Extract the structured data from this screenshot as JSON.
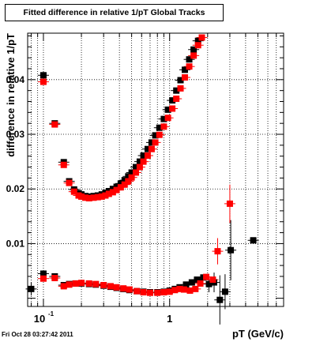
{
  "page": {
    "timestamp": "Fri Oct 28 03:27:42 2011"
  },
  "chart_data": {
    "type": "scatter",
    "title": "Fitted difference in relative 1/pT  Global Tracks",
    "xlabel": "pT (GeV/c)",
    "ylabel": "difference in relative 1/pT",
    "x_scale": "log",
    "xlim": [
      0.075,
      8.0
    ],
    "ylim": [
      -0.0015,
      0.0485
    ],
    "grid": true,
    "x_ticks": [
      {
        "value": 0.1,
        "label": "10",
        "exp": "-1"
      },
      {
        "value": 1,
        "label": "1",
        "exp": ""
      }
    ],
    "y_ticks": [
      {
        "value": 0.01,
        "label": "0.01"
      },
      {
        "value": 0.02,
        "label": "0.02"
      },
      {
        "value": 0.03,
        "label": "0.03"
      },
      {
        "value": 0.04,
        "label": "0.04"
      }
    ],
    "series": [
      {
        "color": "#000000",
        "points": [
          [
            0.08,
            0.0017,
            0.0012
          ],
          [
            0.1,
            0.0408,
            0.0006
          ],
          [
            0.123,
            0.032,
            0.0005
          ],
          [
            0.145,
            0.0249,
            0.0004
          ],
          [
            0.16,
            0.0214,
            0.0004
          ],
          [
            0.175,
            0.0199,
            0
          ],
          [
            0.19,
            0.0192,
            0
          ],
          [
            0.2,
            0.019,
            0
          ],
          [
            0.215,
            0.0187,
            0
          ],
          [
            0.23,
            0.0186,
            0
          ],
          [
            0.25,
            0.0187,
            0
          ],
          [
            0.27,
            0.0188,
            0
          ],
          [
            0.29,
            0.019,
            0
          ],
          [
            0.31,
            0.0193,
            0
          ],
          [
            0.33,
            0.0196,
            0
          ],
          [
            0.355,
            0.02,
            0
          ],
          [
            0.38,
            0.0204,
            0
          ],
          [
            0.41,
            0.021,
            0
          ],
          [
            0.44,
            0.0216,
            0
          ],
          [
            0.47,
            0.0223,
            0
          ],
          [
            0.5,
            0.023,
            0
          ],
          [
            0.54,
            0.024,
            0
          ],
          [
            0.58,
            0.025,
            0
          ],
          [
            0.62,
            0.0261,
            0
          ],
          [
            0.67,
            0.0273,
            0
          ],
          [
            0.72,
            0.0285,
            0
          ],
          [
            0.77,
            0.0298,
            0
          ],
          [
            0.83,
            0.0312,
            0
          ],
          [
            0.9,
            0.0328,
            0
          ],
          [
            0.97,
            0.0345,
            0
          ],
          [
            1.05,
            0.0362,
            0
          ],
          [
            1.13,
            0.038,
            0
          ],
          [
            1.22,
            0.0399,
            0
          ],
          [
            1.32,
            0.0418,
            0
          ],
          [
            1.43,
            0.0437,
            0
          ],
          [
            1.55,
            0.0455,
            0
          ],
          [
            1.68,
            0.0471,
            0
          ],
          [
            0.1,
            0.0045,
            0.0004
          ],
          [
            0.123,
            0.004,
            0.0004
          ],
          [
            0.145,
            0.0024,
            0
          ],
          [
            0.16,
            0.0026,
            0
          ],
          [
            0.18,
            0.0027,
            0
          ],
          [
            0.2,
            0.0027,
            0
          ],
          [
            0.23,
            0.0026,
            0
          ],
          [
            0.26,
            0.0025,
            0
          ],
          [
            0.3,
            0.0023,
            0
          ],
          [
            0.34,
            0.0021,
            0
          ],
          [
            0.38,
            0.0019,
            0
          ],
          [
            0.43,
            0.0017,
            0
          ],
          [
            0.48,
            0.0015,
            0
          ],
          [
            0.55,
            0.0013,
            0
          ],
          [
            0.62,
            0.0012,
            0
          ],
          [
            0.7,
            0.0011,
            0
          ],
          [
            0.8,
            0.0011,
            0
          ],
          [
            0.9,
            0.0012,
            0
          ],
          [
            1.0,
            0.0014,
            0
          ],
          [
            1.1,
            0.0017,
            0
          ],
          [
            1.2,
            0.002,
            0
          ],
          [
            1.35,
            0.0025,
            0
          ],
          [
            1.5,
            0.0029,
            0
          ],
          [
            1.65,
            0.0034,
            0
          ],
          [
            1.85,
            0.0038,
            0
          ],
          [
            2.05,
            0.0026,
            0.0015
          ],
          [
            2.25,
            0.0029,
            0.0018
          ],
          [
            2.5,
            -0.0003,
            0.0045
          ],
          [
            2.75,
            0.0012,
            0.0032
          ],
          [
            3.05,
            0.0088,
            0.0055
          ],
          [
            4.6,
            0.0106,
            0
          ]
        ]
      },
      {
        "color": "#ff0000",
        "points": [
          [
            0.1,
            0.0396,
            0.0005
          ],
          [
            0.123,
            0.0318,
            0.0004
          ],
          [
            0.145,
            0.0244,
            0.0004
          ],
          [
            0.16,
            0.0211,
            0
          ],
          [
            0.175,
            0.0195,
            0
          ],
          [
            0.19,
            0.0188,
            0
          ],
          [
            0.2,
            0.0186,
            0
          ],
          [
            0.215,
            0.0184,
            0
          ],
          [
            0.23,
            0.0183,
            0
          ],
          [
            0.25,
            0.0184,
            0
          ],
          [
            0.27,
            0.0185,
            0
          ],
          [
            0.29,
            0.0186,
            0
          ],
          [
            0.31,
            0.0188,
            0
          ],
          [
            0.33,
            0.0191,
            0
          ],
          [
            0.355,
            0.0194,
            0
          ],
          [
            0.38,
            0.0198,
            0
          ],
          [
            0.41,
            0.0203,
            0
          ],
          [
            0.44,
            0.0208,
            0
          ],
          [
            0.47,
            0.0214,
            0
          ],
          [
            0.5,
            0.0221,
            0
          ],
          [
            0.54,
            0.023,
            0
          ],
          [
            0.58,
            0.024,
            0
          ],
          [
            0.62,
            0.025,
            0
          ],
          [
            0.67,
            0.0261,
            0
          ],
          [
            0.72,
            0.0273,
            0
          ],
          [
            0.77,
            0.0285,
            0
          ],
          [
            0.83,
            0.0299,
            0
          ],
          [
            0.9,
            0.0314,
            0
          ],
          [
            0.97,
            0.033,
            0
          ],
          [
            1.05,
            0.0347,
            0
          ],
          [
            1.13,
            0.0365,
            0
          ],
          [
            1.22,
            0.0384,
            0
          ],
          [
            1.32,
            0.0404,
            0
          ],
          [
            1.43,
            0.0424,
            0
          ],
          [
            1.55,
            0.0444,
            0
          ],
          [
            1.68,
            0.0463,
            0
          ],
          [
            1.8,
            0.0477,
            0
          ],
          [
            0.1,
            0.0036,
            0.0004
          ],
          [
            0.123,
            0.0037,
            0
          ],
          [
            0.145,
            0.0022,
            0
          ],
          [
            0.16,
            0.0025,
            0
          ],
          [
            0.18,
            0.0027,
            0
          ],
          [
            0.2,
            0.0028,
            0
          ],
          [
            0.23,
            0.0027,
            0
          ],
          [
            0.26,
            0.0026,
            0
          ],
          [
            0.3,
            0.0024,
            0
          ],
          [
            0.34,
            0.0022,
            0
          ],
          [
            0.38,
            0.002,
            0
          ],
          [
            0.43,
            0.0018,
            0
          ],
          [
            0.48,
            0.0016,
            0
          ],
          [
            0.55,
            0.0013,
            0
          ],
          [
            0.62,
            0.0011,
            0
          ],
          [
            0.7,
            0.001,
            0
          ],
          [
            0.8,
            0.001,
            0
          ],
          [
            0.9,
            0.0011,
            0
          ],
          [
            1.0,
            0.0012,
            0
          ],
          [
            1.1,
            0.0015,
            0
          ],
          [
            1.2,
            0.0017,
            0
          ],
          [
            1.3,
            0.0016,
            0
          ],
          [
            1.45,
            0.0014,
            0
          ],
          [
            1.6,
            0.0017,
            0
          ],
          [
            1.75,
            0.0027,
            0
          ],
          [
            1.95,
            0.0039,
            0
          ],
          [
            2.2,
            0.0034,
            0
          ],
          [
            2.4,
            0.0086,
            0.0024
          ],
          [
            3.0,
            0.0173,
            0.0035
          ]
        ]
      }
    ]
  }
}
